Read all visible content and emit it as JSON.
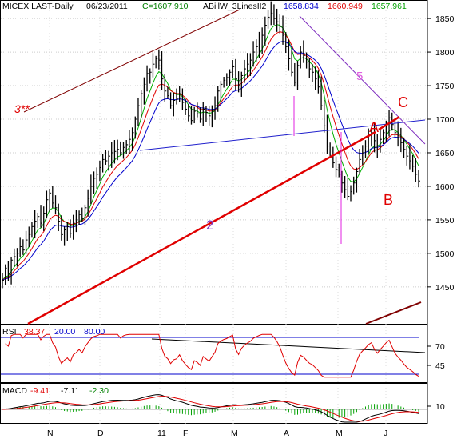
{
  "chart_data": {
    "type": "line",
    "header": {
      "symbol": "MICEX LAST-Daily",
      "date": "06/23/2011",
      "close": "C=1607.910",
      "indicator": "ABillW_3LinesII2",
      "v1": "1658.834",
      "v2": "1660.949",
      "v3": "1657.961"
    },
    "colors": {
      "price": "#000000",
      "ma_fast": "#00b000",
      "ma_mid": "#e00000",
      "ma_slow": "#0000cc",
      "trendline_red": "#e00000",
      "trendline_blue": "#2020cc",
      "trendline_purple": "#8030c0",
      "trendline_maroon": "#800000",
      "magenta": "#e020e0",
      "rsi": "#e00000",
      "macd_black": "#000000",
      "macd_red": "#e00000",
      "macd_hist": "#00a000"
    },
    "price_panel": {
      "yticks": [
        1850,
        1800,
        1750,
        1700,
        1650,
        1600,
        1550,
        1500,
        1450
      ],
      "ylim": [
        1395,
        1868
      ],
      "grid": true
    },
    "xticks": [
      "N",
      "D",
      "11",
      "F",
      "M",
      "A",
      "M",
      "J"
    ],
    "annotations": {
      "label_3": "3**",
      "label_2": "2",
      "label_5": "5",
      "label_A": "A",
      "label_B": "B",
      "label_C": "C"
    },
    "rsi_panel": {
      "label": "RSI",
      "value": "38.37",
      "lower": "20.00",
      "upper": "80.00",
      "yticks": [
        "70",
        "45"
      ]
    },
    "macd_panel": {
      "label": "MACD",
      "v1": "-9.41",
      "v2": "-7.11",
      "v3": "-2.30",
      "yticks": [
        "10"
      ]
    },
    "close_series": [
      1460,
      1478,
      1470,
      1490,
      1495,
      1500,
      1510,
      1505,
      1520,
      1528,
      1540,
      1548,
      1555,
      1545,
      1560,
      1580,
      1590,
      1575,
      1568,
      1548,
      1528,
      1535,
      1540,
      1530,
      1545,
      1550,
      1558,
      1552,
      1568,
      1582,
      1600,
      1612,
      1618,
      1628,
      1640,
      1638,
      1645,
      1650,
      1652,
      1655,
      1650,
      1658,
      1662,
      1670,
      1680,
      1700,
      1720,
      1738,
      1752,
      1768,
      1770,
      1782,
      1790,
      1788,
      1760,
      1742,
      1735,
      1720,
      1728,
      1730,
      1738,
      1725,
      1715,
      1705,
      1698,
      1712,
      1708,
      1700,
      1715,
      1710,
      1705,
      1712,
      1720,
      1742,
      1752,
      1758,
      1762,
      1770,
      1778,
      1760,
      1750,
      1765,
      1775,
      1782,
      1788,
      1800,
      1808,
      1815,
      1825,
      1840,
      1852,
      1858,
      1850,
      1845,
      1838,
      1825,
      1808,
      1790,
      1770,
      1755,
      1780,
      1800,
      1795,
      1785,
      1775,
      1770,
      1760,
      1748,
      1720,
      1690,
      1660,
      1648,
      1635,
      1625,
      1618,
      1605,
      1595,
      1585,
      1592,
      1605,
      1622,
      1640,
      1650,
      1660,
      1672,
      1680,
      1668,
      1660,
      1670,
      1680,
      1692,
      1702,
      1692,
      1680,
      1672,
      1665,
      1655,
      1645,
      1638,
      1630,
      1618,
      1608
    ]
  }
}
